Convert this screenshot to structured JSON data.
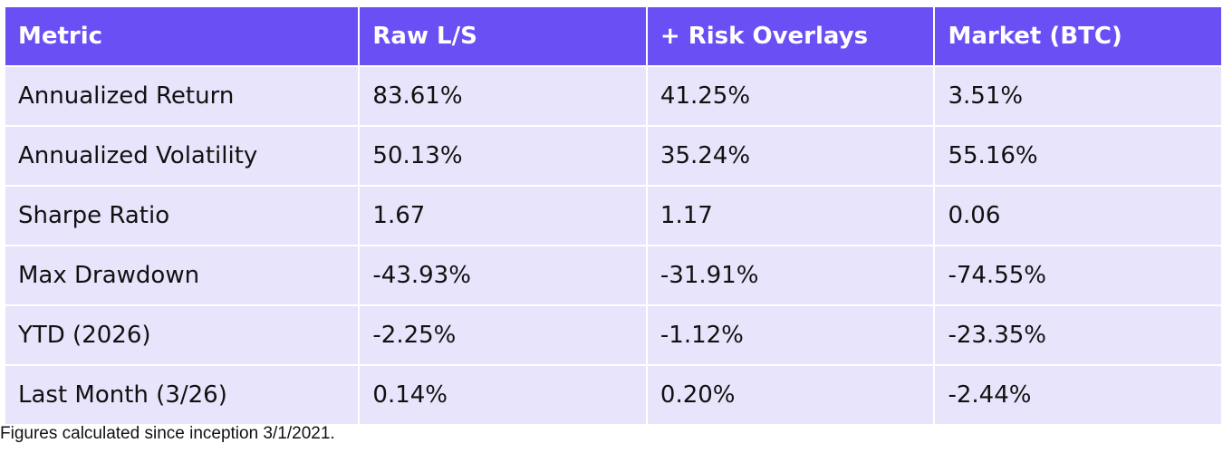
{
  "table": {
    "header": [
      "Metric",
      "Raw L/S",
      "+ Risk Overlays",
      "Market (BTC)"
    ],
    "rows": [
      [
        "Annualized Return",
        "83.61%",
        "41.25%",
        "3.51%"
      ],
      [
        "Annualized Volatility",
        "50.13%",
        "35.24%",
        "55.16%"
      ],
      [
        "Sharpe Ratio",
        "1.67",
        "1.17",
        "0.06"
      ],
      [
        "Max Drawdown",
        "-43.93%",
        "-31.91%",
        "-74.55%"
      ],
      [
        "YTD (2026)",
        "-2.25%",
        "-1.12%",
        "-23.35%"
      ],
      [
        "Last Month (3/26)",
        "0.14%",
        "0.20%",
        "-2.44%"
      ]
    ]
  },
  "footnote": "Figures calculated since inception 3/1/2021."
}
